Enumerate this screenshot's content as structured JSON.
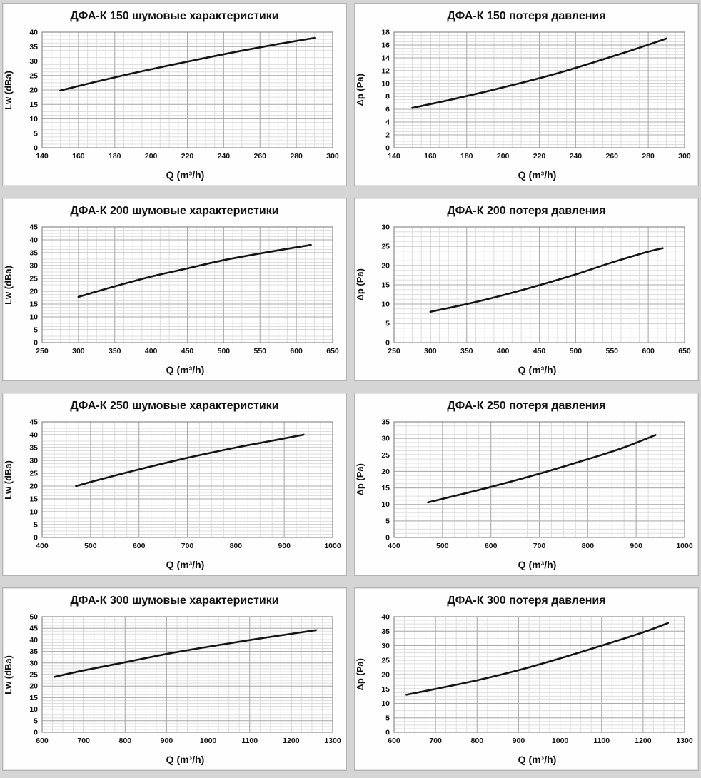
{
  "page": {
    "background_color": "#d5d5d5",
    "panel_background": "#fefefe",
    "panel_border_color": "#b3b3b3",
    "curve_color": "#141414",
    "minor_grid_color": "#dedede",
    "major_grid_color": "#ababab",
    "frame_color": "#8c8c8c",
    "text_color": "#111111"
  },
  "chart_data": [
    {
      "type": "line",
      "title": "ДФА-К 150 шумовые характеристики",
      "xlabel": "Q (m³/h)",
      "ylabel": "Lw (dBa)",
      "xlim": [
        140,
        300
      ],
      "ylim": [
        0,
        40
      ],
      "xticks": [
        140,
        160,
        180,
        200,
        220,
        240,
        260,
        280,
        300
      ],
      "yticks": [
        0,
        5,
        10,
        15,
        20,
        25,
        30,
        35,
        40
      ],
      "xminor": 5,
      "yminor": 1.25,
      "grid": true,
      "legend": false,
      "series": [
        {
          "name": "Lw",
          "points": [
            [
              150,
              19.8
            ],
            [
              170,
              22.9
            ],
            [
              190,
              25.8
            ],
            [
              210,
              28.5
            ],
            [
              230,
              31.1
            ],
            [
              250,
              33.6
            ],
            [
              270,
              35.9
            ],
            [
              290,
              38.0
            ]
          ]
        }
      ]
    },
    {
      "type": "line",
      "title": "ДФА-К 150 потеря давления",
      "xlabel": "Q (m³/h)",
      "ylabel": "Δp (Pa)",
      "xlim": [
        140,
        300
      ],
      "ylim": [
        0,
        18
      ],
      "xticks": [
        140,
        160,
        180,
        200,
        220,
        240,
        260,
        280,
        300
      ],
      "yticks": [
        0,
        2,
        4,
        6,
        8,
        10,
        12,
        14,
        16,
        18
      ],
      "xminor": 5,
      "yminor": 0.5,
      "grid": true,
      "legend": false,
      "series": [
        {
          "name": "Δp",
          "points": [
            [
              150,
              6.2
            ],
            [
              170,
              7.4
            ],
            [
              190,
              8.7
            ],
            [
              210,
              10.1
            ],
            [
              230,
              11.6
            ],
            [
              250,
              13.3
            ],
            [
              270,
              15.1
            ],
            [
              290,
              17.0
            ]
          ]
        }
      ]
    },
    {
      "type": "line",
      "title": "ДФА-К 200 шумовые характеристики",
      "xlabel": "Q (m³/h)",
      "ylabel": "Lw (dBa)",
      "xlim": [
        250,
        650
      ],
      "ylim": [
        0,
        45
      ],
      "xticks": [
        250,
        300,
        350,
        400,
        450,
        500,
        550,
        600,
        650
      ],
      "yticks": [
        0,
        5,
        10,
        15,
        20,
        25,
        30,
        35,
        40,
        45
      ],
      "xminor": 12.5,
      "yminor": 1.25,
      "grid": true,
      "legend": false,
      "series": [
        {
          "name": "Lw",
          "points": [
            [
              300,
              17.8
            ],
            [
              350,
              21.9
            ],
            [
              400,
              25.7
            ],
            [
              450,
              28.9
            ],
            [
              500,
              32.1
            ],
            [
              550,
              34.7
            ],
            [
              600,
              37.1
            ],
            [
              620,
              38.0
            ]
          ]
        }
      ]
    },
    {
      "type": "line",
      "title": "ДФА-К 200 потеря давления",
      "xlabel": "Q (m³/h)",
      "ylabel": "Δp (Pa)",
      "xlim": [
        250,
        650
      ],
      "ylim": [
        0,
        30
      ],
      "xticks": [
        250,
        300,
        350,
        400,
        450,
        500,
        550,
        600,
        650
      ],
      "yticks": [
        0,
        5,
        10,
        15,
        20,
        25,
        30
      ],
      "xminor": 12.5,
      "yminor": 1.25,
      "grid": true,
      "legend": false,
      "series": [
        {
          "name": "Δp",
          "points": [
            [
              300,
              8.0
            ],
            [
              350,
              10.0
            ],
            [
              400,
              12.3
            ],
            [
              450,
              14.9
            ],
            [
              500,
              17.7
            ],
            [
              550,
              20.8
            ],
            [
              600,
              23.6
            ],
            [
              620,
              24.5
            ]
          ]
        }
      ]
    },
    {
      "type": "line",
      "title": "ДФА-К 250 шумовые характеристики",
      "xlabel": "Q (m³/h)",
      "ylabel": "Lw (dBa)",
      "xlim": [
        400,
        1000
      ],
      "ylim": [
        0,
        45
      ],
      "xticks": [
        400,
        500,
        600,
        700,
        800,
        900,
        1000
      ],
      "yticks": [
        0,
        5,
        10,
        15,
        20,
        25,
        30,
        35,
        40,
        45
      ],
      "xminor": 25,
      "yminor": 1.25,
      "grid": true,
      "legend": false,
      "series": [
        {
          "name": "Lw",
          "points": [
            [
              470,
              20.0
            ],
            [
              520,
              22.6
            ],
            [
              600,
              26.5
            ],
            [
              700,
              31.0
            ],
            [
              800,
              35.0
            ],
            [
              870,
              37.5
            ],
            [
              940,
              40.0
            ]
          ]
        }
      ]
    },
    {
      "type": "line",
      "title": "ДФА-К 250 потеря давления",
      "xlabel": "Q (m³/h)",
      "ylabel": "Δp (Pa)",
      "xlim": [
        400,
        1000
      ],
      "ylim": [
        0,
        35
      ],
      "xticks": [
        400,
        500,
        600,
        700,
        800,
        900,
        1000
      ],
      "yticks": [
        0,
        5,
        10,
        15,
        20,
        25,
        30,
        35
      ],
      "xminor": 25,
      "yminor": 1.25,
      "grid": true,
      "legend": false,
      "series": [
        {
          "name": "Δp",
          "points": [
            [
              470,
              10.6
            ],
            [
              520,
              12.4
            ],
            [
              600,
              15.3
            ],
            [
              700,
              19.3
            ],
            [
              800,
              23.7
            ],
            [
              870,
              27.0
            ],
            [
              940,
              31.0
            ]
          ]
        }
      ]
    },
    {
      "type": "line",
      "title": "ДФА-К 300 шумовые характеристики",
      "xlabel": "Q (m³/h)",
      "ylabel": "Lw (dBa)",
      "xlim": [
        600,
        1300
      ],
      "ylim": [
        0,
        50
      ],
      "xticks": [
        600,
        700,
        800,
        900,
        1000,
        1100,
        1200,
        1300
      ],
      "yticks": [
        0,
        5,
        10,
        15,
        20,
        25,
        30,
        35,
        40,
        45,
        50
      ],
      "xminor": 25,
      "yminor": 1.25,
      "grid": true,
      "legend": false,
      "series": [
        {
          "name": "Lw",
          "points": [
            [
              630,
              24.0
            ],
            [
              700,
              26.8
            ],
            [
              800,
              30.3
            ],
            [
              900,
              33.9
            ],
            [
              1000,
              37.0
            ],
            [
              1100,
              39.9
            ],
            [
              1200,
              42.6
            ],
            [
              1260,
              44.2
            ]
          ]
        }
      ]
    },
    {
      "type": "line",
      "title": "ДФА-К 300 потеря давления",
      "xlabel": "Q (m³/h)",
      "ylabel": "Δp (Pa)",
      "xlim": [
        600,
        1300
      ],
      "ylim": [
        0,
        40
      ],
      "xticks": [
        600,
        700,
        800,
        900,
        1000,
        1100,
        1200,
        1300
      ],
      "yticks": [
        0,
        5,
        10,
        15,
        20,
        25,
        30,
        35,
        40
      ],
      "xminor": 25,
      "yminor": 1.25,
      "grid": true,
      "legend": false,
      "series": [
        {
          "name": "Δp",
          "points": [
            [
              630,
              13.0
            ],
            [
              700,
              15.0
            ],
            [
              800,
              18.0
            ],
            [
              900,
              21.5
            ],
            [
              1000,
              25.6
            ],
            [
              1100,
              30.0
            ],
            [
              1200,
              34.6
            ],
            [
              1260,
              37.8
            ]
          ]
        }
      ]
    }
  ]
}
